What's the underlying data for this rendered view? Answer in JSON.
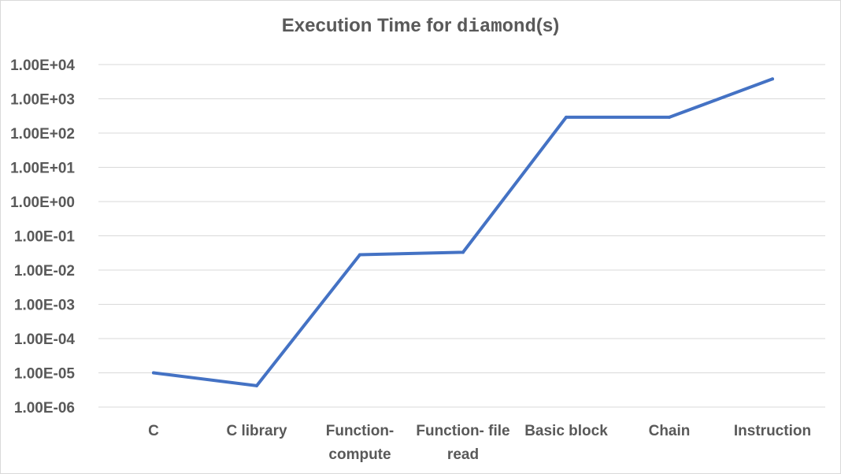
{
  "chart_data": {
    "type": "line",
    "title_prefix": "Execution Time for ",
    "title_code": "diamond",
    "title_suffix": "(s)",
    "categories": [
      "C",
      "C library",
      "Function-compute",
      "Function- file read",
      "Basic block",
      "Chain",
      "Instruction"
    ],
    "category_label_lines": [
      [
        "C"
      ],
      [
        "C library"
      ],
      [
        "Function-",
        "compute"
      ],
      [
        "Function- file",
        "read"
      ],
      [
        "Basic block"
      ],
      [
        "Chain"
      ],
      [
        "Instruction"
      ]
    ],
    "series": [
      {
        "values": [
          1e-05,
          4.2e-06,
          0.028,
          0.033,
          290,
          290,
          3800
        ]
      }
    ],
    "y_scale": "log",
    "ylim": [
      1e-06,
      10000
    ],
    "y_tick_labels": [
      "1.00E-06",
      "1.00E-05",
      "1.00E-04",
      "1.00E-03",
      "1.00E-02",
      "1.00E-01",
      "1.00E+00",
      "1.00E+01",
      "1.00E+02",
      "1.00E+03",
      "1.00E+04"
    ],
    "xlabel": "",
    "ylabel": "",
    "grid": true,
    "legend": "none",
    "colors": {
      "line": "#4472c4",
      "grid": "#d9d9d9",
      "text": "#595959"
    }
  }
}
